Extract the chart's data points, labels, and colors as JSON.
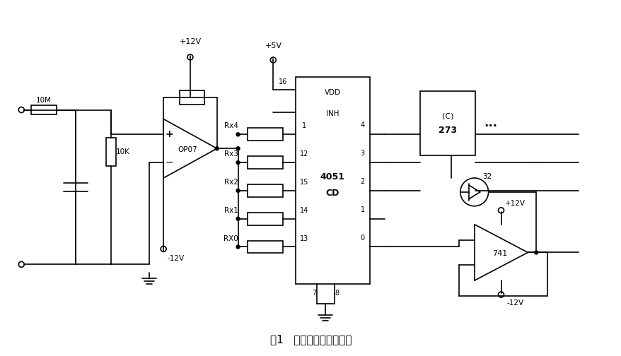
{
  "background": "#ffffff",
  "line_color": "#000000",
  "lw": 1.2,
  "fig_width": 8.79,
  "fig_height": 5.04,
  "labels": {
    "plus12v_top": "+12V",
    "plus5v": "+5V",
    "minus12v_op": "-12V",
    "plus12v_741": "+12V",
    "minus12v_741": "-12V",
    "vdd": "VDD",
    "inh": "INH",
    "op07": "OP07",
    "resistor_10m": "10M",
    "resistor_10k": "10K",
    "rx4": "Rx4",
    "rx3": "Rx3",
    "rx2": "Rx2",
    "rx1": "Rx1",
    "rx0": "RX0",
    "pin16": "16",
    "cd": "CD",
    "cd4051": "4051",
    "ic_273_a": "273",
    "ic_273_b": "(C)",
    "ic_741": "741",
    "num_32": "32",
    "dots": "...",
    "caption": "图1   信号输及部分结构图"
  }
}
